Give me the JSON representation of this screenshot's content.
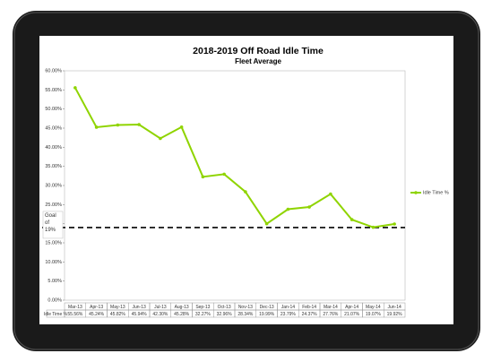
{
  "chart_data": {
    "type": "line",
    "title": "2018-2019 Off Road Idle Time",
    "subtitle": "Fleet Average",
    "categories": [
      "Mar-13",
      "Apr-13",
      "May-13",
      "Jun-13",
      "Jul-13",
      "Aug-13",
      "Sep-13",
      "Oct-13",
      "Nov-13",
      "Dec-13",
      "Jan-14",
      "Feb-14",
      "Mar-14",
      "Apr-14",
      "May-14",
      "Jun-14"
    ],
    "series": [
      {
        "name": "Idle Time %",
        "color": "#8fd400",
        "values": [
          55.56,
          45.24,
          45.82,
          45.94,
          42.3,
          45.28,
          32.27,
          32.96,
          28.34,
          19.99,
          23.79,
          24.37,
          27.76,
          21.07,
          19.07,
          19.92
        ],
        "value_labels": [
          "55.56%",
          "45.24%",
          "45.82%",
          "45.94%",
          "42.30%",
          "45.28%",
          "32.27%",
          "32.96%",
          "28.34%",
          "19.99%",
          "23.79%",
          "24.37%",
          "27.76%",
          "21.07%",
          "19.07%",
          "19.92%"
        ]
      }
    ],
    "ylim": [
      0,
      60
    ],
    "yticks": [
      {
        "value": 0,
        "label": "0.00%"
      },
      {
        "value": 5,
        "label": "5.00%"
      },
      {
        "value": 10,
        "label": "10.00%"
      },
      {
        "value": 15,
        "label": "15.00%"
      },
      {
        "value": 20,
        "label": "20.00%"
      },
      {
        "value": 25,
        "label": "25.00%"
      },
      {
        "value": 30,
        "label": "30.00%"
      },
      {
        "value": 35,
        "label": "35.00%"
      },
      {
        "value": 40,
        "label": "40.00%"
      },
      {
        "value": 45,
        "label": "45.00%"
      },
      {
        "value": 50,
        "label": "50.00%"
      },
      {
        "value": 55,
        "label": "55.00%"
      },
      {
        "value": 60,
        "label": "60.00%"
      }
    ],
    "goal": {
      "value": 19,
      "label": "Goal of 19%"
    },
    "legend": "right"
  }
}
